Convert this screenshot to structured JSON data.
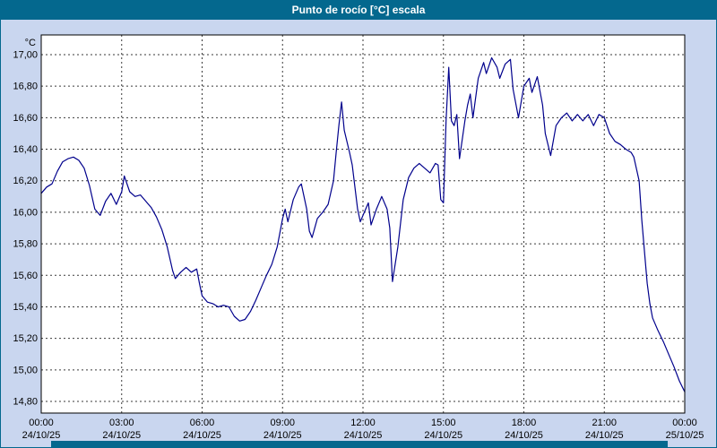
{
  "window": {
    "title": "Punto de rocío [°C] escala"
  },
  "colors": {
    "titlebar": "#04688e",
    "background": "#c9d6ef",
    "plot_bg": "#ffffff",
    "grid": "#3a3a3a",
    "border": "#000000",
    "line": "#00008c",
    "strip": "#04688e"
  },
  "chart_data": {
    "type": "line",
    "title": "Punto de rocío [°C] escala",
    "xlabel": "",
    "ylabel": "°C",
    "ylim": [
      14.8,
      17.0
    ],
    "xlim_hours": [
      0,
      24
    ],
    "grid": true,
    "legend": "none",
    "yticks": [
      {
        "value": 17.0,
        "label": "17,00"
      },
      {
        "value": 16.8,
        "label": "16,80"
      },
      {
        "value": 16.6,
        "label": "16,60"
      },
      {
        "value": 16.4,
        "label": "16,40"
      },
      {
        "value": 16.2,
        "label": "16,20"
      },
      {
        "value": 16.0,
        "label": "16,00"
      },
      {
        "value": 15.8,
        "label": "15,80"
      },
      {
        "value": 15.6,
        "label": "15,60"
      },
      {
        "value": 15.4,
        "label": "15,40"
      },
      {
        "value": 15.2,
        "label": "15,20"
      },
      {
        "value": 15.0,
        "label": "15,00"
      },
      {
        "value": 14.8,
        "label": "14,80"
      }
    ],
    "xticks": [
      {
        "hour": 0,
        "time": "00:00",
        "date": "24/10/25"
      },
      {
        "hour": 3,
        "time": "03:00",
        "date": "24/10/25"
      },
      {
        "hour": 6,
        "time": "06:00",
        "date": "24/10/25"
      },
      {
        "hour": 9,
        "time": "09:00",
        "date": "24/10/25"
      },
      {
        "hour": 12,
        "time": "12:00",
        "date": "24/10/25"
      },
      {
        "hour": 15,
        "time": "15:00",
        "date": "24/10/25"
      },
      {
        "hour": 18,
        "time": "18:00",
        "date": "24/10/25"
      },
      {
        "hour": 21,
        "time": "21:00",
        "date": "24/10/25"
      },
      {
        "hour": 24,
        "time": "00:00",
        "date": "25/10/25"
      }
    ],
    "series": [
      {
        "name": "Punto de rocío",
        "color": "#00008c",
        "points": [
          [
            0,
            16.12
          ],
          [
            0.2,
            16.16
          ],
          [
            0.4,
            16.18
          ],
          [
            0.6,
            16.26
          ],
          [
            0.8,
            16.32
          ],
          [
            1,
            16.34
          ],
          [
            1.2,
            16.35
          ],
          [
            1.4,
            16.33
          ],
          [
            1.6,
            16.28
          ],
          [
            1.8,
            16.17
          ],
          [
            2,
            16.02
          ],
          [
            2.2,
            15.98
          ],
          [
            2.4,
            16.07
          ],
          [
            2.6,
            16.12
          ],
          [
            2.8,
            16.05
          ],
          [
            3,
            16.13
          ],
          [
            3.1,
            16.23
          ],
          [
            3.3,
            16.13
          ],
          [
            3.5,
            16.1
          ],
          [
            3.7,
            16.11
          ],
          [
            3.9,
            16.07
          ],
          [
            4.1,
            16.03
          ],
          [
            4.3,
            15.97
          ],
          [
            4.5,
            15.89
          ],
          [
            4.7,
            15.78
          ],
          [
            4.9,
            15.63
          ],
          [
            5,
            15.58
          ],
          [
            5.2,
            15.62
          ],
          [
            5.4,
            15.65
          ],
          [
            5.6,
            15.62
          ],
          [
            5.8,
            15.64
          ],
          [
            5.9,
            15.55
          ],
          [
            6,
            15.47
          ],
          [
            6.2,
            15.43
          ],
          [
            6.4,
            15.42
          ],
          [
            6.6,
            15.4
          ],
          [
            6.8,
            15.41
          ],
          [
            7,
            15.4
          ],
          [
            7.2,
            15.34
          ],
          [
            7.4,
            15.31
          ],
          [
            7.6,
            15.32
          ],
          [
            7.8,
            15.37
          ],
          [
            8,
            15.44
          ],
          [
            8.2,
            15.52
          ],
          [
            8.4,
            15.6
          ],
          [
            8.6,
            15.67
          ],
          [
            8.8,
            15.78
          ],
          [
            9,
            15.96
          ],
          [
            9.1,
            16.02
          ],
          [
            9.2,
            15.94
          ],
          [
            9.4,
            16.08
          ],
          [
            9.6,
            16.16
          ],
          [
            9.7,
            16.18
          ],
          [
            9.9,
            16.02
          ],
          [
            10,
            15.88
          ],
          [
            10.1,
            15.84
          ],
          [
            10.3,
            15.96
          ],
          [
            10.5,
            16.0
          ],
          [
            10.7,
            16.05
          ],
          [
            10.9,
            16.2
          ],
          [
            11,
            16.38
          ],
          [
            11.1,
            16.55
          ],
          [
            11.2,
            16.7
          ],
          [
            11.3,
            16.52
          ],
          [
            11.5,
            16.38
          ],
          [
            11.6,
            16.3
          ],
          [
            11.8,
            16.02
          ],
          [
            11.9,
            15.94
          ],
          [
            12,
            15.98
          ],
          [
            12.2,
            16.06
          ],
          [
            12.3,
            15.92
          ],
          [
            12.5,
            16.02
          ],
          [
            12.7,
            16.1
          ],
          [
            12.9,
            16.02
          ],
          [
            13,
            15.9
          ],
          [
            13.1,
            15.56
          ],
          [
            13.3,
            15.78
          ],
          [
            13.5,
            16.08
          ],
          [
            13.7,
            16.22
          ],
          [
            13.9,
            16.28
          ],
          [
            14.1,
            16.31
          ],
          [
            14.3,
            16.28
          ],
          [
            14.5,
            16.25
          ],
          [
            14.7,
            16.31
          ],
          [
            14.8,
            16.3
          ],
          [
            14.9,
            16.08
          ],
          [
            15,
            16.06
          ],
          [
            15.1,
            16.58
          ],
          [
            15.2,
            16.92
          ],
          [
            15.3,
            16.58
          ],
          [
            15.4,
            16.55
          ],
          [
            15.5,
            16.62
          ],
          [
            15.6,
            16.34
          ],
          [
            15.8,
            16.58
          ],
          [
            15.9,
            16.68
          ],
          [
            16,
            16.75
          ],
          [
            16.1,
            16.6
          ],
          [
            16.3,
            16.85
          ],
          [
            16.5,
            16.95
          ],
          [
            16.6,
            16.88
          ],
          [
            16.8,
            16.98
          ],
          [
            17,
            16.92
          ],
          [
            17.1,
            16.85
          ],
          [
            17.3,
            16.94
          ],
          [
            17.5,
            16.97
          ],
          [
            17.6,
            16.78
          ],
          [
            17.8,
            16.6
          ],
          [
            18,
            16.8
          ],
          [
            18.2,
            16.85
          ],
          [
            18.3,
            16.76
          ],
          [
            18.5,
            16.86
          ],
          [
            18.7,
            16.68
          ],
          [
            18.8,
            16.5
          ],
          [
            19,
            16.36
          ],
          [
            19.2,
            16.55
          ],
          [
            19.4,
            16.6
          ],
          [
            19.6,
            16.63
          ],
          [
            19.8,
            16.58
          ],
          [
            20,
            16.62
          ],
          [
            20.2,
            16.58
          ],
          [
            20.4,
            16.62
          ],
          [
            20.6,
            16.55
          ],
          [
            20.8,
            16.62
          ],
          [
            21,
            16.6
          ],
          [
            21.2,
            16.5
          ],
          [
            21.4,
            16.45
          ],
          [
            21.6,
            16.43
          ],
          [
            21.8,
            16.4
          ],
          [
            22,
            16.38
          ],
          [
            22.1,
            16.35
          ],
          [
            22.3,
            16.2
          ],
          [
            22.4,
            15.95
          ],
          [
            22.5,
            15.75
          ],
          [
            22.6,
            15.55
          ],
          [
            22.7,
            15.42
          ],
          [
            22.8,
            15.33
          ],
          [
            23,
            15.25
          ],
          [
            23.2,
            15.18
          ],
          [
            23.4,
            15.1
          ],
          [
            23.6,
            15.02
          ],
          [
            23.8,
            14.93
          ],
          [
            24,
            14.86
          ]
        ]
      }
    ]
  }
}
